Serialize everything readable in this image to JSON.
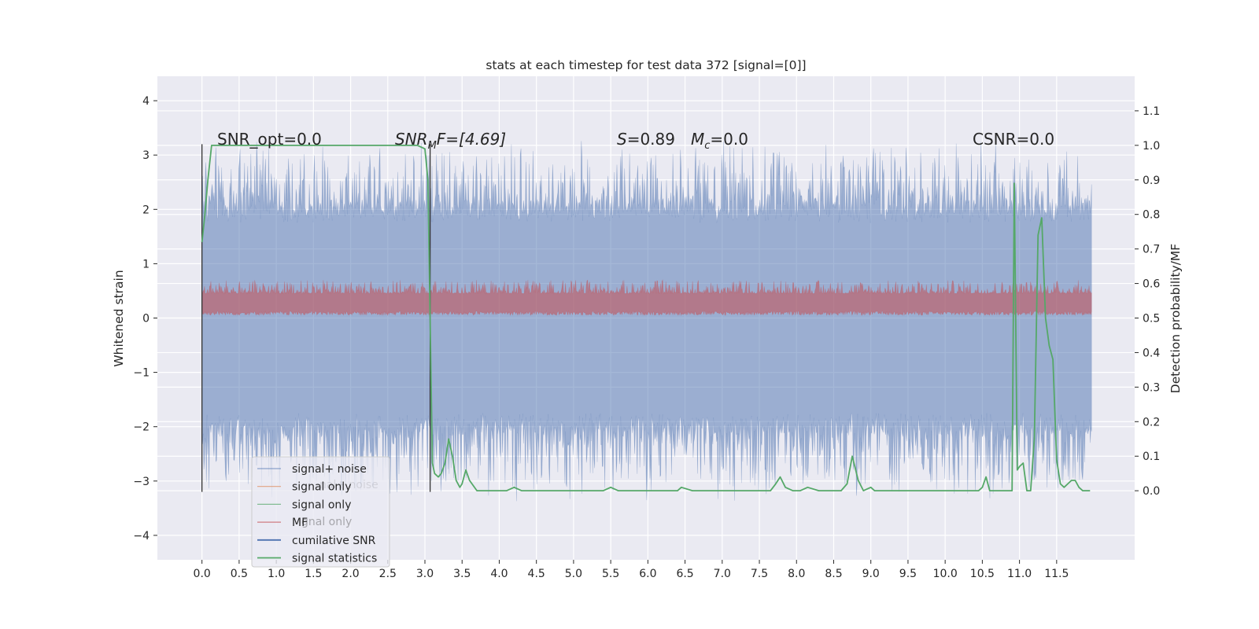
{
  "chart_data": {
    "type": "line",
    "title": "stats at each timestep for test data 372 [signal=[0]]",
    "xlabel": "",
    "ylabel": "Whitened strain",
    "y2label": "Detection probability/MF",
    "xlim": [
      -0.6,
      12.55
    ],
    "ylim": [
      -4.45,
      4.45
    ],
    "y2lim": [
      -0.2,
      1.2
    ],
    "xticks": [
      "0.0",
      "0.5",
      "1.0",
      "1.5",
      "2.0",
      "2.5",
      "3.0",
      "3.5",
      "4.0",
      "4.5",
      "5.0",
      "5.5",
      "6.0",
      "6.5",
      "7.0",
      "7.5",
      "8.0",
      "8.5",
      "9.0",
      "9.5",
      "10.0",
      "10.5",
      "11.0",
      "11.5"
    ],
    "yticks": [
      "4",
      "3",
      "2",
      "1",
      "0",
      "−1",
      "−2",
      "−3",
      "−4"
    ],
    "y2ticks": [
      "1.1",
      "1.0",
      "0.9",
      "0.8",
      "0.7",
      "0.6",
      "0.5",
      "0.4",
      "0.3",
      "0.2",
      "0.1",
      "0.0"
    ],
    "grid": true,
    "legend_position": "lower-left",
    "colors": {
      "noise": "#4c72b0",
      "signal_only_1": "#dd8452",
      "signal_only_2": "#55a868",
      "mf": "#c44e52",
      "cumulative": "#4c72b0",
      "statistics": "#55a868",
      "vline": "#333333",
      "plot_bg": "#eaeaf2"
    },
    "annotations": {
      "snr_opt": "SNR_opt=0.0",
      "snr_mf_main": "SNR",
      "snr_mf_sub": "M",
      "snr_mf_rest": "F=[4.69]",
      "s_main": "S",
      "s_rest": "=0.89",
      "mc_main": "M",
      "mc_sub": "c",
      "mc_rest": "=0.0",
      "csnr": "CSNR=0.0"
    },
    "legend": [
      {
        "label": "signal+ noise",
        "color": "#4c72b0",
        "width": 1.2,
        "opacity": 0.6
      },
      {
        "label": "signal only",
        "color": "#dd8452",
        "width": 1.2,
        "opacity": 0.7
      },
      {
        "label": "signal only",
        "color": "#55a868",
        "width": 1.2,
        "opacity": 0.7
      },
      {
        "label": "MF",
        "color": "#c44e52",
        "width": 1.2,
        "opacity": 0.7
      },
      {
        "label": "cumilative SNR",
        "color": "#4c72b0",
        "width": 1.8,
        "opacity": 1
      },
      {
        "label": "signal statistics",
        "color": "#55a868",
        "width": 1.8,
        "opacity": 1
      }
    ],
    "ghost_legend": [
      "nal+ noise",
      "gnal only"
    ],
    "series": [
      {
        "name": "signal statistics",
        "axis": "y2",
        "x": [
          0.0,
          0.04,
          0.08,
          0.13,
          0.2,
          0.5,
          1.0,
          1.5,
          2.0,
          2.5,
          2.9,
          3.0,
          3.04,
          3.07,
          3.1,
          3.13,
          3.18,
          3.22,
          3.27,
          3.32,
          3.37,
          3.42,
          3.47,
          3.5,
          3.55,
          3.6,
          3.7,
          3.8,
          3.9,
          4.0,
          4.1,
          4.2,
          4.3,
          4.4,
          4.5,
          5.0,
          5.4,
          5.5,
          5.6,
          6.0,
          6.4,
          6.45,
          6.6,
          7.0,
          7.5,
          7.65,
          7.72,
          7.78,
          7.85,
          7.95,
          8.05,
          8.15,
          8.3,
          8.6,
          8.68,
          8.75,
          8.83,
          8.9,
          9.0,
          9.05,
          9.1,
          9.3,
          9.5,
          9.6,
          9.65,
          9.8,
          10.0,
          10.2,
          10.4,
          10.45,
          10.5,
          10.55,
          10.6,
          10.7,
          10.9,
          10.93,
          10.97,
          11.0,
          11.05,
          11.1,
          11.15,
          11.2,
          11.25,
          11.3,
          11.35,
          11.4,
          11.45,
          11.5,
          11.55,
          11.6,
          11.65,
          11.7,
          11.75,
          11.8,
          11.85,
          11.9,
          11.95
        ],
        "values": [
          0.72,
          0.8,
          0.9,
          1.0,
          1.0,
          1.0,
          1.0,
          1.0,
          1.0,
          1.0,
          1.0,
          0.99,
          0.9,
          0.5,
          0.08,
          0.05,
          0.04,
          0.05,
          0.08,
          0.15,
          0.1,
          0.03,
          0.01,
          0.02,
          0.06,
          0.03,
          0.0,
          0.0,
          0.0,
          0.0,
          0.0,
          0.01,
          0.0,
          0.0,
          0.0,
          0.0,
          0.0,
          0.01,
          0.0,
          0.0,
          0.0,
          0.01,
          0.0,
          0.0,
          0.0,
          0.0,
          0.02,
          0.04,
          0.01,
          0.0,
          0.0,
          0.01,
          0.0,
          0.0,
          0.02,
          0.1,
          0.03,
          0.0,
          0.01,
          0.0,
          0.0,
          0.0,
          0.0,
          0.0,
          0.0,
          0.0,
          0.0,
          0.0,
          0.0,
          0.0,
          0.01,
          0.04,
          0.0,
          0.0,
          0.0,
          0.89,
          0.06,
          0.07,
          0.08,
          0.0,
          0.0,
          0.15,
          0.74,
          0.79,
          0.5,
          0.42,
          0.38,
          0.09,
          0.02,
          0.01,
          0.02,
          0.03,
          0.03,
          0.01,
          0.0,
          0.0,
          0.0
        ]
      }
    ],
    "shaded_bands": [
      {
        "name": "signal+ noise",
        "color": "#4c72b0",
        "core": [
          -1.95,
          1.95
        ],
        "spike_max": 3.1,
        "spike_min": -3.2
      },
      {
        "name": "MF",
        "color": "#c44e52",
        "core": [
          0.05,
          0.45
        ],
        "spike_max": 0.7,
        "spike_min": 0.0
      }
    ],
    "vlines": [
      0.0,
      3.07
    ]
  }
}
